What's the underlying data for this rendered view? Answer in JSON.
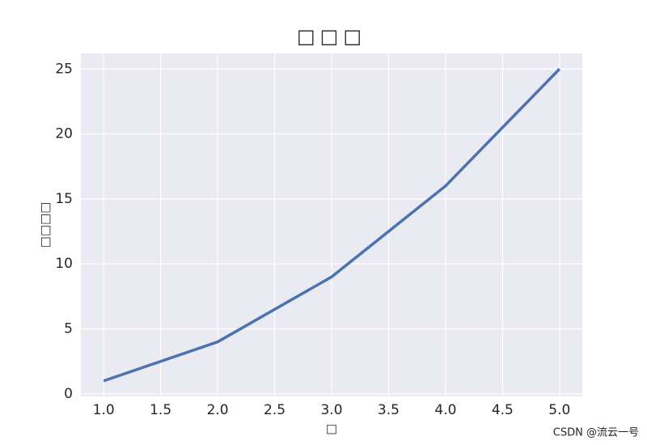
{
  "chart_data": {
    "type": "line",
    "title": "□□□",
    "xlabel": "□",
    "ylabel": "□□□□",
    "x": [
      1,
      2,
      3,
      4,
      5
    ],
    "series": [
      {
        "name": null,
        "color": "#4c72b0",
        "values": [
          1,
          4,
          9,
          16,
          25
        ]
      }
    ],
    "xlim": [
      0.8,
      5.2
    ],
    "xticks": [
      {
        "value": 1,
        "label": "1.0"
      },
      {
        "value": 1.5,
        "label": "1.5"
      },
      {
        "value": 2,
        "label": "2.0"
      },
      {
        "value": 2.5,
        "label": "2.5"
      },
      {
        "value": 3,
        "label": "3.0"
      },
      {
        "value": 3.5,
        "label": "3.5"
      },
      {
        "value": 4,
        "label": "4.0"
      },
      {
        "value": 4.5,
        "label": "4.5"
      },
      {
        "value": 5,
        "label": "5.0"
      }
    ],
    "ylim": [
      -0.2,
      26.2
    ],
    "yticks": [
      0,
      5,
      10,
      15,
      20,
      25
    ],
    "grid": true,
    "watermark": "CSDN @流云一号"
  }
}
